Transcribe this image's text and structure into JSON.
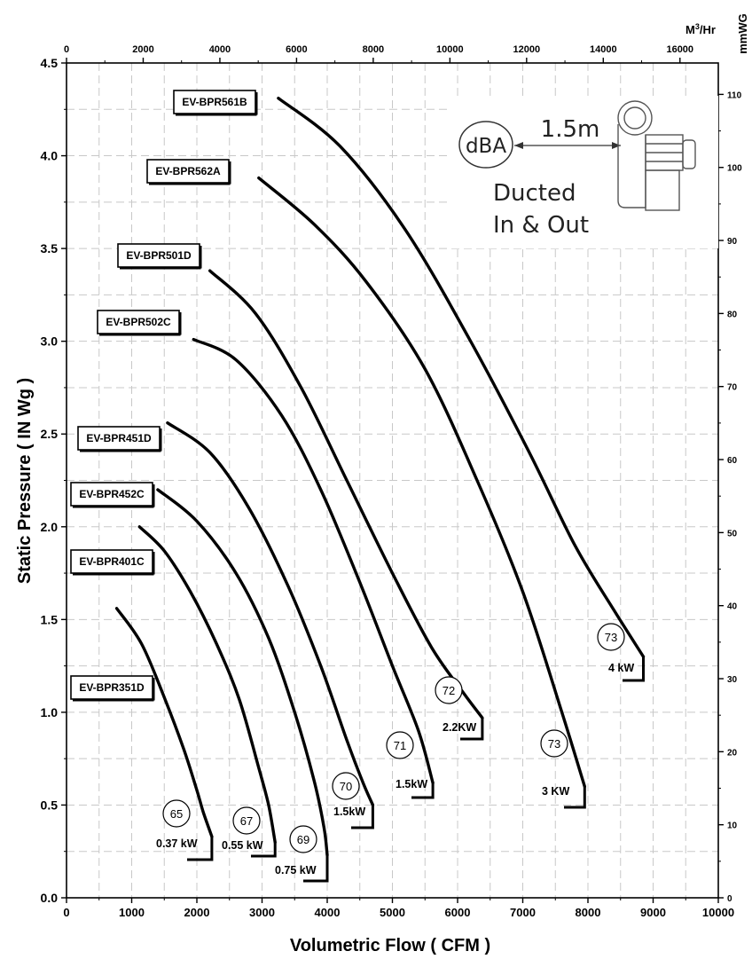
{
  "chart_data": {
    "type": "line",
    "xlabel": "Volumetric Flow ( CFM )",
    "ylabel": "Static Pressure (   IN Wg  )",
    "x2label": "M3/Hr",
    "y2label": "mmWG",
    "xlim": [
      0,
      10000
    ],
    "ylim": [
      0,
      4.5
    ],
    "x2lim": [
      0,
      17000
    ],
    "y2lim": [
      0,
      114.3
    ],
    "x_ticks": [
      "0",
      "1000",
      "2000",
      "3000",
      "4000",
      "5000",
      "6000",
      "7000",
      "8000",
      "9000",
      "10000"
    ],
    "y_ticks": [
      "0.0",
      "0.5",
      "1.0",
      "1.5",
      "2.0",
      "2.5",
      "3.0",
      "3.5",
      "4.0",
      "4.5"
    ],
    "x2_ticks": [
      "0",
      "2000",
      "4000",
      "6000",
      "8000",
      "10000",
      "12000",
      "14000",
      "16000"
    ],
    "y2_ticks": [
      "0",
      "10",
      "20",
      "30",
      "40",
      "50",
      "60",
      "70",
      "80",
      "90",
      "100",
      "110"
    ],
    "grid": true,
    "inset": {
      "dba": "dBA",
      "distance": "1.5m",
      "line1": "Ducted",
      "line2": "In & Out"
    },
    "series": [
      {
        "name": "EV-BPR351D",
        "power": "0.37 kW",
        "dba": "65",
        "x": [
          770,
          1150,
          1500,
          1800,
          2000,
          2100,
          2230
        ],
        "y": [
          1.56,
          1.37,
          1.08,
          0.8,
          0.58,
          0.46,
          0.33
        ]
      },
      {
        "name": "EV-BPR401C",
        "power": "0.55 kW",
        "dba": "67",
        "x": [
          1120,
          1500,
          1900,
          2300,
          2650,
          2950,
          3100,
          3200
        ],
        "y": [
          2.0,
          1.87,
          1.65,
          1.37,
          1.07,
          0.7,
          0.5,
          0.3
        ]
      },
      {
        "name": "EV-BPR452C",
        "power": "0.75 kW",
        "dba": "69",
        "x": [
          1400,
          2000,
          2600,
          3100,
          3500,
          3800,
          3950,
          4000
        ],
        "y": [
          2.2,
          2.03,
          1.75,
          1.4,
          1.0,
          0.63,
          0.38,
          0.23
        ]
      },
      {
        "name": "EV-BPR451D",
        "power": "1.5kW",
        "dba": "70",
        "x": [
          1550,
          2200,
          2800,
          3400,
          3900,
          4300,
          4550,
          4700
        ],
        "y": [
          2.56,
          2.4,
          2.1,
          1.68,
          1.25,
          0.85,
          0.62,
          0.5
        ]
      },
      {
        "name": "EV-BPR502C",
        "power": "1.5kW",
        "dba": "71",
        "x": [
          1950,
          2600,
          3300,
          3900,
          4500,
          5000,
          5400,
          5620
        ],
        "y": [
          3.01,
          2.9,
          2.6,
          2.2,
          1.7,
          1.25,
          0.9,
          0.62
        ]
      },
      {
        "name": "EV-BPR501D",
        "power": "2.2KW",
        "dba": "72",
        "x": [
          2200,
          2900,
          3600,
          4300,
          5000,
          5600,
          6100,
          6380
        ],
        "y": [
          3.38,
          3.15,
          2.75,
          2.25,
          1.75,
          1.35,
          1.1,
          0.97
        ]
      },
      {
        "name": "EV-BPR562A",
        "power": "3 KW",
        "dba": "73",
        "x": [
          2950,
          3800,
          4600,
          5500,
          6300,
          7000,
          7600,
          7950
        ],
        "y": [
          3.88,
          3.63,
          3.32,
          2.85,
          2.25,
          1.65,
          1.0,
          0.6
        ]
      },
      {
        "name": "EV-BPR561B",
        "power": "4 kW",
        "dba": "73",
        "x": [
          3250,
          4200,
          5200,
          6200,
          7100,
          7800,
          8400,
          8850
        ],
        "y": [
          4.31,
          4.05,
          3.6,
          3.0,
          2.4,
          1.9,
          1.55,
          1.3
        ]
      }
    ]
  }
}
